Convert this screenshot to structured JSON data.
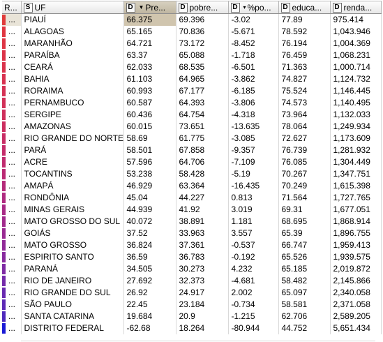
{
  "headers": [
    {
      "badge": "",
      "label": "R..."
    },
    {
      "badge": "S",
      "label": "UF"
    },
    {
      "badge": "D",
      "label": "Pre...",
      "sort": "▼"
    },
    {
      "badge": "D",
      "label": "pobre..."
    },
    {
      "badge": "D",
      "label": "%po...",
      "sort": "▾"
    },
    {
      "badge": "D",
      "label": "educa..."
    },
    {
      "badge": "D",
      "label": "renda..."
    }
  ],
  "rows": [
    {
      "color": "#e03a3a",
      "dots": "...",
      "uf": "PIAUÍ",
      "pre": "66.375",
      "pobre": "69.396",
      "po": "-3.02",
      "educa": "77.89",
      "renda": "975.414"
    },
    {
      "color": "#e03540",
      "dots": "...",
      "uf": "ALAGOAS",
      "pre": "65.165",
      "pobre": "70.836",
      "po": "-5.671",
      "educa": "78.592",
      "renda": "1,043.946"
    },
    {
      "color": "#de3545",
      "dots": "...",
      "uf": "MARANHÃO",
      "pre": "64.721",
      "pobre": "73.172",
      "po": "-8.452",
      "educa": "76.194",
      "renda": "1,004.369"
    },
    {
      "color": "#dc3448",
      "dots": "...",
      "uf": "PARAÍBA",
      "pre": "63.37",
      "pobre": "65.088",
      "po": "-1.718",
      "educa": "76.459",
      "renda": "1,068.231"
    },
    {
      "color": "#da334c",
      "dots": "...",
      "uf": "CEARÁ",
      "pre": "62.033",
      "pobre": "68.535",
      "po": "-6.501",
      "educa": "71.363",
      "renda": "1,000.714"
    },
    {
      "color": "#d83250",
      "dots": "...",
      "uf": "BAHIA",
      "pre": "61.103",
      "pobre": "64.965",
      "po": "-3.862",
      "educa": "74.827",
      "renda": "1,124.732"
    },
    {
      "color": "#d53154",
      "dots": "...",
      "uf": "RORAIMA",
      "pre": "60.993",
      "pobre": "67.177",
      "po": "-6.185",
      "educa": "75.524",
      "renda": "1,146.445"
    },
    {
      "color": "#d23058",
      "dots": "...",
      "uf": "PERNAMBUCO",
      "pre": "60.587",
      "pobre": "64.393",
      "po": "-3.806",
      "educa": "74.573",
      "renda": "1,140.495"
    },
    {
      "color": "#cf2f5c",
      "dots": "...",
      "uf": "SERGIPE",
      "pre": "60.436",
      "pobre": "64.754",
      "po": "-4.318",
      "educa": "73.964",
      "renda": "1,132.033"
    },
    {
      "color": "#cc2e60",
      "dots": "...",
      "uf": "AMAZONAS",
      "pre": "60.015",
      "pobre": "73.651",
      "po": "-13.635",
      "educa": "78.064",
      "renda": "1,249.934"
    },
    {
      "color": "#c82d65",
      "dots": "...",
      "uf": "RIO GRANDE DO NORTE",
      "pre": "58.69",
      "pobre": "61.775",
      "po": "-3.085",
      "educa": "72.627",
      "renda": "1,173.609"
    },
    {
      "color": "#c42c6a",
      "dots": "...",
      "uf": "PARÁ",
      "pre": "58.501",
      "pobre": "67.858",
      "po": "-9.357",
      "educa": "76.739",
      "renda": "1,281.932"
    },
    {
      "color": "#c02b6f",
      "dots": "...",
      "uf": "ACRE",
      "pre": "57.596",
      "pobre": "64.706",
      "po": "-7.109",
      "educa": "76.085",
      "renda": "1,304.449"
    },
    {
      "color": "#bb2a74",
      "dots": "...",
      "uf": "TOCANTINS",
      "pre": "53.238",
      "pobre": "58.428",
      "po": "-5.19",
      "educa": "70.267",
      "renda": "1,347.751"
    },
    {
      "color": "#b52a7a",
      "dots": "...",
      "uf": "AMAPÁ",
      "pre": "46.929",
      "pobre": "63.364",
      "po": "-16.435",
      "educa": "70.249",
      "renda": "1,615.398"
    },
    {
      "color": "#af2a80",
      "dots": "...",
      "uf": "RONDÔNIA",
      "pre": "45.04",
      "pobre": "44.227",
      "po": "0.813",
      "educa": "71.564",
      "renda": "1,727.765"
    },
    {
      "color": "#a82a86",
      "dots": "...",
      "uf": "MINAS GERAIS",
      "pre": "44.939",
      "pobre": "41.92",
      "po": "3.019",
      "educa": "69.31",
      "renda": "1,677.051"
    },
    {
      "color": "#a12a8c",
      "dots": "...",
      "uf": "MATO GROSSO DO SUL",
      "pre": "40.072",
      "pobre": "38.891",
      "po": "1.181",
      "educa": "68.695",
      "renda": "1,868.914"
    },
    {
      "color": "#992a92",
      "dots": "...",
      "uf": "GOIÁS",
      "pre": "37.52",
      "pobre": "33.963",
      "po": "3.557",
      "educa": "65.39",
      "renda": "1,896.755"
    },
    {
      "color": "#912a98",
      "dots": "...",
      "uf": "MATO GROSSO",
      "pre": "36.824",
      "pobre": "37.361",
      "po": "-0.537",
      "educa": "66.747",
      "renda": "1,959.413"
    },
    {
      "color": "#882a9e",
      "dots": "...",
      "uf": "ESPIRITO SANTO",
      "pre": "36.59",
      "pobre": "36.783",
      "po": "-0.192",
      "educa": "65.526",
      "renda": "1,939.575"
    },
    {
      "color": "#7e2aa4",
      "dots": "...",
      "uf": "PARANÁ",
      "pre": "34.505",
      "pobre": "30.273",
      "po": "4.232",
      "educa": "65.185",
      "renda": "2,019.872"
    },
    {
      "color": "#742aaa",
      "dots": "...",
      "uf": "RIO DE JANEIRO",
      "pre": "27.692",
      "pobre": "32.373",
      "po": "-4.681",
      "educa": "58.482",
      "renda": "2,145.866"
    },
    {
      "color": "#692ab0",
      "dots": "...",
      "uf": "RIO GRANDE DO SUL",
      "pre": "26.92",
      "pobre": "24.917",
      "po": "2.002",
      "educa": "65.097",
      "renda": "2,340.058"
    },
    {
      "color": "#5d2ab6",
      "dots": "...",
      "uf": "SÃO PAULO",
      "pre": "22.45",
      "pobre": "23.184",
      "po": "-0.734",
      "educa": "58.581",
      "renda": "2,371.058"
    },
    {
      "color": "#4f2abd",
      "dots": "...",
      "uf": "SANTA CATARINA",
      "pre": "19.684",
      "pobre": "20.9",
      "po": "-1.215",
      "educa": "62.706",
      "renda": "2,589.205"
    },
    {
      "color": "#1a1ad6",
      "dots": "...",
      "uf": "DISTRITO FEDERAL",
      "pre": "-62.68",
      "pobre": "18.264",
      "po": "-80.944",
      "educa": "44.752",
      "renda": "5,651.434"
    }
  ]
}
